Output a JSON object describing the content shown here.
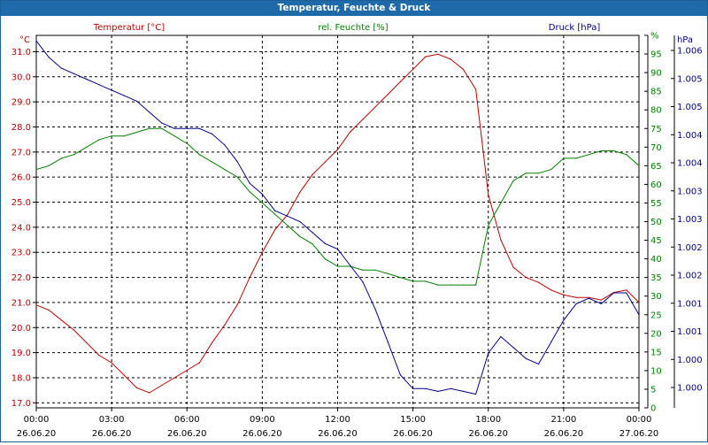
{
  "window": {
    "title": "Temperatur, Feuchte & Druck"
  },
  "chart_data": {
    "type": "line",
    "x_ticks": [
      {
        "time": "00:00",
        "date": "26.06.20"
      },
      {
        "time": "03:00",
        "date": "26.06.20"
      },
      {
        "time": "06:00",
        "date": "26.06.20"
      },
      {
        "time": "09:00",
        "date": "26.06.20"
      },
      {
        "time": "12:00",
        "date": "26.06.20"
      },
      {
        "time": "15:00",
        "date": "26.06.20"
      },
      {
        "time": "18:00",
        "date": "26.06.20"
      },
      {
        "time": "21:00",
        "date": "26.06.20"
      },
      {
        "time": "00:00",
        "date": "27.06.20"
      }
    ],
    "x_unit": "hours since 00:00 26.06.20",
    "xlim": [
      0,
      24
    ],
    "grid": true,
    "axes": {
      "temperature": {
        "title": "Temperatur [°C]",
        "unit": "°C",
        "color": "#c00000",
        "side": "left",
        "ylim": [
          16.8,
          31.65
        ],
        "ticks": [
          "17.0",
          "18.0",
          "19.0",
          "20.0",
          "21.0",
          "22.0",
          "23.0",
          "24.0",
          "25.0",
          "26.0",
          "27.0",
          "28.0",
          "29.0",
          "30.0",
          "31.0"
        ]
      },
      "humidity": {
        "title": "rel. Feuchte [%]",
        "unit": "%",
        "color": "#008000",
        "side": "right",
        "ylim": [
          0,
          100
        ],
        "ticks": [
          "0",
          "5",
          "10",
          "15",
          "20",
          "25",
          "30",
          "35",
          "40",
          "45",
          "50",
          "55",
          "60",
          "65",
          "70",
          "75",
          "80",
          "85",
          "90",
          "95",
          "%"
        ]
      },
      "pressure": {
        "title": "Druck [hPa]",
        "unit": "hPa",
        "color": "#00008b",
        "side": "right",
        "ylim": [
          0.9995,
          1.0063
        ],
        "ticks": [
          "1.000",
          "1.000",
          "1.001",
          "1.001",
          "1.002",
          "1.002",
          "1.003",
          "1.003",
          "1.004",
          "1.004",
          "1.005",
          "1.005",
          "1.006"
        ]
      }
    },
    "series": [
      {
        "name": "Temperatur [°C]",
        "axis": "temperature",
        "color": "#c00000",
        "x": [
          0,
          0.5,
          1,
          1.5,
          2,
          2.5,
          3,
          3.5,
          4,
          4.5,
          5,
          5.5,
          6,
          6.5,
          7,
          7.5,
          8,
          8.5,
          9,
          9.5,
          10,
          10.5,
          11,
          11.5,
          12,
          12.5,
          13,
          13.5,
          14,
          14.5,
          15,
          15.5,
          16,
          16.5,
          17,
          17.5,
          18,
          18.5,
          19,
          19.5,
          20,
          20.5,
          21,
          21.5,
          22,
          22.5,
          23,
          23.5,
          24
        ],
        "values": [
          20.9,
          20.7,
          20.3,
          19.9,
          19.4,
          18.9,
          18.6,
          18.1,
          17.6,
          17.4,
          17.7,
          18.0,
          18.3,
          18.6,
          19.4,
          20.1,
          20.9,
          22.0,
          23.0,
          23.9,
          24.5,
          25.4,
          26.1,
          26.6,
          27.1,
          27.8,
          28.3,
          28.8,
          29.3,
          29.8,
          30.3,
          30.8,
          30.9,
          30.7,
          30.3,
          29.5,
          25.3,
          23.5,
          22.4,
          22.0,
          21.8,
          21.5,
          21.3,
          21.2,
          21.2,
          21.1,
          21.4,
          21.5,
          21.0
        ]
      },
      {
        "name": "rel. Feuchte [%]",
        "axis": "humidity",
        "color": "#008000",
        "x": [
          0,
          0.5,
          1,
          1.5,
          2,
          2.5,
          3,
          3.5,
          4,
          4.5,
          5,
          5.5,
          6,
          6.5,
          7,
          7.5,
          8,
          8.5,
          9,
          9.5,
          10,
          10.5,
          11,
          11.5,
          12,
          12.5,
          13,
          13.5,
          14,
          14.5,
          15,
          15.5,
          16,
          16.5,
          17,
          17.5,
          18,
          18.5,
          19,
          19.5,
          20,
          20.5,
          21,
          21.5,
          22,
          22.5,
          23,
          23.5,
          24
        ],
        "values": [
          64,
          65,
          67,
          68,
          70,
          72,
          73,
          73,
          74,
          75,
          75,
          73,
          71,
          68,
          66,
          64,
          62,
          58,
          55,
          52,
          49,
          46,
          44,
          40,
          38,
          38,
          37,
          37,
          36,
          35,
          34,
          34,
          33,
          33,
          33,
          33,
          49,
          55,
          61,
          63,
          63,
          64,
          67,
          67,
          68,
          69,
          69,
          68,
          65
        ]
      },
      {
        "name": "Druck [hPa]",
        "axis": "pressure",
        "color": "#00008b",
        "x": [
          0,
          0.5,
          1,
          1.5,
          2,
          2.5,
          3,
          3.5,
          4,
          4.5,
          5,
          5.5,
          6,
          6.5,
          7,
          7.5,
          8,
          8.5,
          9,
          9.5,
          10,
          10.5,
          11,
          11.5,
          12,
          12.5,
          13,
          13.5,
          14,
          14.5,
          15,
          15.5,
          16,
          16.5,
          17,
          17.5,
          18,
          18.5,
          19,
          19.5,
          20,
          20.5,
          21,
          21.5,
          22,
          22.5,
          23,
          23.5,
          24
        ],
        "values": [
          1.0062,
          1.0059,
          1.0057,
          1.0056,
          1.0055,
          1.0054,
          1.0053,
          1.0052,
          1.0051,
          1.0049,
          1.0047,
          1.0046,
          1.0046,
          1.0046,
          1.0045,
          1.0043,
          1.004,
          1.0036,
          1.0034,
          1.0031,
          1.003,
          1.0029,
          1.0027,
          1.0025,
          1.0024,
          1.0021,
          1.0018,
          1.0013,
          1.0007,
          1.0001,
          0.99985,
          0.99985,
          0.9998,
          0.99985,
          0.9998,
          0.99975,
          1.0005,
          1.0008,
          1.0006,
          1.0004,
          1.0003,
          1.0007,
          1.0011,
          1.0014,
          1.0015,
          1.0014,
          1.0016,
          1.0016,
          1.0012
        ]
      }
    ]
  }
}
